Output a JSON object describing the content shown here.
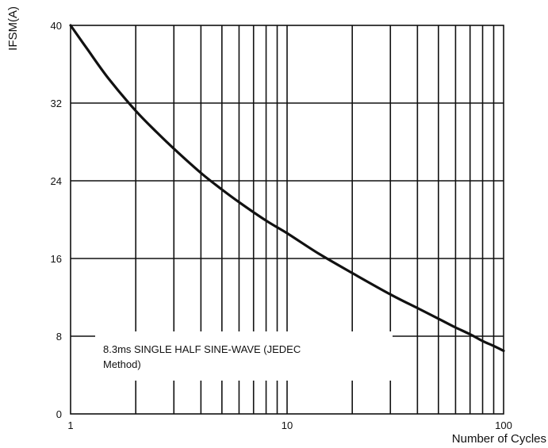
{
  "chart_data": {
    "type": "line",
    "x_scale": "log",
    "xlim": [
      1,
      100
    ],
    "ylim": [
      0,
      40
    ],
    "grid": true,
    "xlabel": "Number of Cycles",
    "ylabel": "IFSM(A)",
    "x_tick_labels": [
      "1",
      "10",
      "100"
    ],
    "y_tick_labels": [
      "0",
      "8",
      "16",
      "24",
      "32",
      "40"
    ],
    "annotation": [
      "8.3ms SINGLE HALF SINE-WAVE (JEDEC",
      "Method)"
    ],
    "series": [
      {
        "x": [
          1,
          1.2,
          1.5,
          2,
          2.5,
          3,
          4,
          5,
          6,
          8,
          10,
          14,
          20,
          30,
          40,
          50,
          60,
          70,
          80,
          90,
          100
        ],
        "y": [
          40,
          37.5,
          34.5,
          31.2,
          29.0,
          27.3,
          24.8,
          23.1,
          21.8,
          19.9,
          18.6,
          16.5,
          14.5,
          12.3,
          10.9,
          9.8,
          8.9,
          8.2,
          7.5,
          7.0,
          6.5
        ]
      }
    ],
    "colors": {
      "line": "#111111",
      "grid": "#111111"
    }
  }
}
